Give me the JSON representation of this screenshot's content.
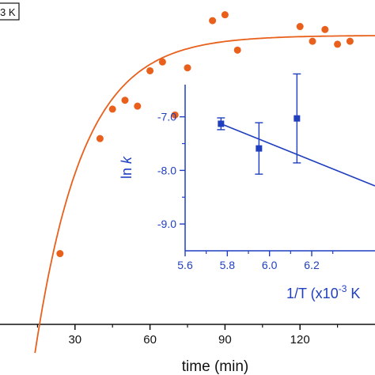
{
  "chart_data": [
    {
      "type": "scatter",
      "xlabel": "time (min)",
      "xticks": [
        "30",
        "60",
        "90",
        "120"
      ],
      "legend": "3 K",
      "xlim": [
        0,
        150
      ],
      "ylim": [
        0,
        1.1
      ],
      "colors": {
        "points": "#e8601c",
        "fit": "#e8601c",
        "axis": "#111111"
      },
      "series": [
        {
          "x": [
            24,
            40,
            45,
            50,
            55,
            60,
            65,
            70,
            75,
            80,
            85,
            90,
            95,
            120,
            125,
            130,
            135,
            140,
            145
          ],
          "y": [
            0.24,
            0.63,
            0.73,
            0.76,
            0.74,
            0.86,
            0.89,
            0.71,
            0.87,
            0.72,
            1.03,
            1.05,
            0.93,
            1.01,
            0.96,
            1.0,
            0.95,
            0.96,
            0.71
          ]
        }
      ],
      "fit": {
        "type": "exponential-rise",
        "plateau": 0.98,
        "t0": 20.7,
        "rate": 0.052,
        "y_at_t0": 0.22
      }
    },
    {
      "type": "scatter",
      "xlabel_parts": {
        "base": "1/T (x10",
        "sup": "-3",
        "tail": " K"
      },
      "ylabel_parts": {
        "base": "ln ",
        "italic": "k"
      },
      "xticks": [
        "5.6",
        "5.8",
        "6.0",
        "6.2"
      ],
      "yticks": [
        "-7.0",
        "-8.0",
        "-9.0"
      ],
      "xlim": [
        5.6,
        6.5
      ],
      "ylim": [
        -9.5,
        -6.4
      ],
      "colors": {
        "points": "#1f3fbf",
        "fit": "#1f3fbf",
        "axis": "#1f3fbf"
      },
      "points": [
        {
          "x": 5.77,
          "y": -7.13,
          "err": 0.11
        },
        {
          "x": 5.95,
          "y": -7.59,
          "err": 0.48
        },
        {
          "x": 6.13,
          "y": -7.03,
          "err": 0.83
        }
      ],
      "fit": {
        "x0": 5.77,
        "y0": -7.13,
        "x1": 6.5,
        "y1": -8.29
      }
    }
  ]
}
